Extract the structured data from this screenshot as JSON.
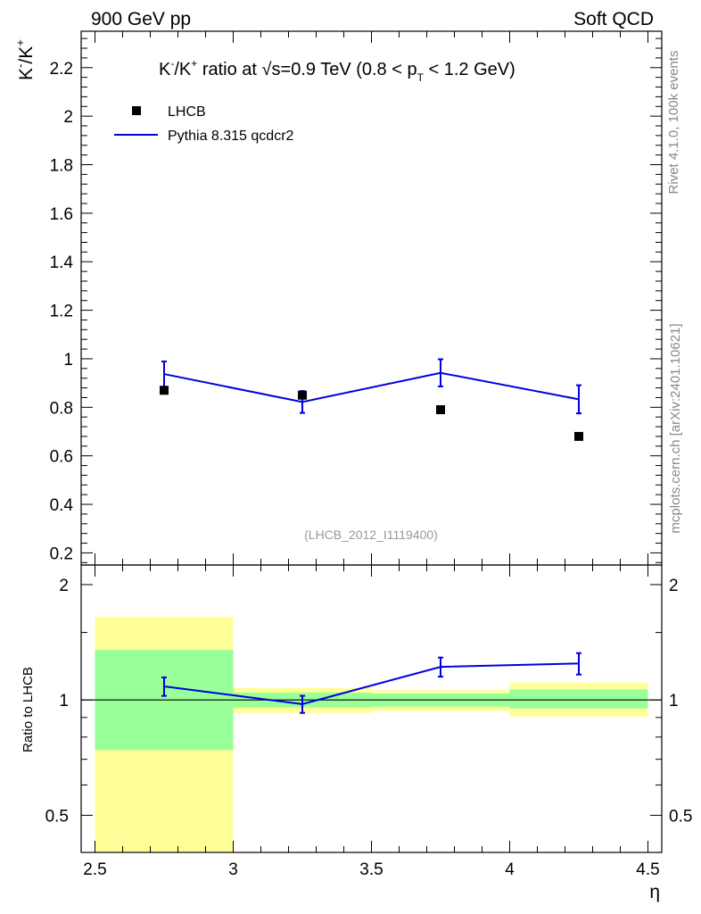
{
  "header": {
    "left": "900 GeV pp",
    "right": "Soft QCD"
  },
  "side_labels": {
    "rivet": "Rivet 4.1.0,  100k events",
    "mcplots": "mcplots.cern.ch [arXiv:2401.10621]"
  },
  "chart_data": {
    "type": "scatter",
    "title": "K⁻/K⁺ ratio at √s=0.9 TeV (0.8 < p_T < 1.2 GeV)",
    "title_parts": {
      "k": "K",
      "minus": "-",
      "slash": "/K",
      "plus": "+",
      "mid": " ratio at ",
      "sqrt": "√",
      "s": "s=0.9 TeV (0.8 < p",
      "sub": "T",
      "end": " < 1.2 GeV)"
    },
    "ylabel": "K⁻/K⁺",
    "ylabel_parts": {
      "k1": "K",
      "m": "-",
      "sl": "/K",
      "p": "+"
    },
    "xlabel": "η",
    "watermark": "(LHCB_2012_I1119400)",
    "xlim": [
      2.45,
      4.55
    ],
    "ylim": [
      0.15,
      2.35
    ],
    "x_ticks": [
      2.5,
      3,
      3.5,
      4,
      4.5
    ],
    "x_tick_labels": [
      "2.5",
      "3",
      "3.5",
      "4",
      "4.5"
    ],
    "y_ticks": [
      0.2,
      0.4,
      0.6,
      0.8,
      1,
      1.2,
      1.4,
      1.6,
      1.8,
      2,
      2.2
    ],
    "y_tick_labels": [
      "0.2",
      "0.4",
      "0.6",
      "0.8",
      "1",
      "1.2",
      "1.4",
      "1.6",
      "1.8",
      "2",
      "2.2"
    ],
    "legend": [
      {
        "name": "LHCB",
        "marker": "square",
        "color": "#000000"
      },
      {
        "name": "Pythia 8.315 qcdcr2",
        "marker": "line",
        "color": "#0000e0"
      }
    ],
    "series": [
      {
        "name": "LHCB",
        "x": [
          2.75,
          3.25,
          3.75,
          4.25
        ],
        "y": [
          0.87,
          0.85,
          0.79,
          0.68
        ]
      },
      {
        "name": "Pythia 8.315 qcdcr2",
        "x": [
          2.75,
          3.25,
          3.75,
          4.25
        ],
        "y": [
          0.937,
          0.822,
          0.942,
          0.833
        ],
        "yerr": [
          0.052,
          0.045,
          0.056,
          0.058
        ]
      }
    ],
    "ratio_panel": {
      "ylabel": "Ratio to LHCB",
      "ylim": [
        0.4,
        2.25
      ],
      "y_ticks": [
        0.5,
        1,
        2
      ],
      "y_tick_labels": [
        "0.5",
        "1",
        "2"
      ],
      "bins": [
        [
          2.5,
          3.0
        ],
        [
          3.0,
          3.5
        ],
        [
          3.5,
          4.0
        ],
        [
          4.0,
          4.5
        ]
      ],
      "band_yellow": [
        [
          0.4,
          1.65
        ],
        [
          0.925,
          1.075
        ],
        [
          0.935,
          1.06
        ],
        [
          0.905,
          1.11
        ]
      ],
      "band_green": [
        [
          0.74,
          1.35
        ],
        [
          0.955,
          1.045
        ],
        [
          0.96,
          1.04
        ],
        [
          0.95,
          1.065
        ]
      ],
      "pythia_ratio": [
        1.085,
        0.975,
        1.22,
        1.245
      ],
      "pythia_ratio_err": [
        0.06,
        0.05,
        0.07,
        0.08
      ]
    }
  }
}
